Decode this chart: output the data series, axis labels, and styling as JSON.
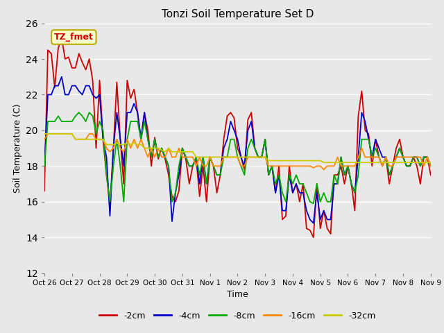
{
  "title": "Tonzi Soil Temperature Set D",
  "xlabel": "Time",
  "ylabel": "Soil Temperature (C)",
  "ylim": [
    12,
    26
  ],
  "xlim": [
    0,
    14
  ],
  "xtick_labels": [
    "Oct 26",
    "Oct 27",
    "Oct 28",
    "Oct 29",
    "Oct 30",
    "Oct 31",
    "Nov 1",
    "Nov 2",
    "Nov 3",
    "Nov 4",
    "Nov 5",
    "Nov 6",
    "Nov 7",
    "Nov 8",
    "Nov 9"
  ],
  "legend_labels": [
    "-2cm",
    "-4cm",
    "-8cm",
    "-16cm",
    "-32cm"
  ],
  "colors": [
    "#cc0000",
    "#0000cc",
    "#00aa00",
    "#ff8800",
    "#cccc00"
  ],
  "annotation_text": "TZ_fmet",
  "annotation_color": "#cc0000",
  "annotation_bg": "#ffffcc",
  "annotation_border": "#bbaa00",
  "background_color": "#e8e8e8",
  "series": {
    "neg2cm": [
      16.6,
      24.5,
      24.3,
      22.4,
      24.6,
      25.2,
      24.0,
      24.1,
      23.5,
      23.5,
      24.3,
      23.8,
      23.4,
      24.0,
      22.8,
      19.0,
      22.8,
      19.5,
      17.5,
      15.8,
      19.0,
      22.7,
      19.5,
      17.0,
      22.8,
      21.8,
      22.3,
      21.0,
      19.5,
      21.0,
      20.0,
      18.0,
      19.6,
      18.4,
      19.0,
      18.4,
      17.5,
      16.3,
      16.0,
      16.6,
      19.0,
      18.4,
      17.0,
      18.0,
      18.4,
      16.3,
      18.0,
      16.0,
      18.5,
      18.0,
      16.5,
      17.5,
      19.5,
      20.8,
      21.0,
      20.7,
      19.0,
      18.5,
      17.8,
      20.6,
      21.0,
      19.0,
      18.5,
      18.5,
      19.5,
      17.5,
      18.0,
      16.5,
      18.0,
      15.0,
      15.2,
      18.0,
      16.5,
      17.0,
      16.0,
      17.0,
      14.5,
      14.4,
      14.0,
      17.0,
      14.5,
      15.5,
      14.5,
      14.2,
      17.5,
      17.5,
      18.0,
      17.0,
      18.0,
      17.0,
      15.5,
      20.8,
      22.2,
      20.0,
      19.8,
      18.0,
      19.5,
      18.5,
      18.0,
      18.5,
      17.0,
      18.0,
      19.0,
      19.5,
      18.5,
      18.0,
      18.0,
      18.5,
      18.0,
      17.0,
      18.5,
      18.5,
      17.5
    ],
    "neg4cm": [
      18.0,
      22.0,
      22.0,
      22.5,
      22.5,
      23.0,
      22.0,
      22.0,
      22.5,
      22.5,
      22.2,
      22.0,
      22.5,
      22.5,
      22.0,
      21.8,
      22.0,
      19.5,
      18.5,
      15.2,
      19.0,
      21.0,
      19.5,
      18.0,
      21.0,
      21.0,
      21.5,
      21.0,
      19.5,
      21.0,
      19.5,
      18.5,
      19.5,
      18.5,
      19.0,
      18.5,
      18.0,
      14.9,
      16.5,
      17.5,
      19.0,
      18.5,
      18.0,
      18.0,
      18.5,
      17.0,
      18.5,
      17.0,
      18.5,
      18.0,
      17.5,
      17.5,
      19.0,
      19.5,
      20.5,
      20.0,
      19.5,
      18.5,
      18.0,
      20.0,
      20.5,
      19.0,
      18.5,
      18.5,
      19.5,
      17.5,
      18.0,
      16.5,
      17.5,
      15.5,
      15.5,
      17.5,
      16.5,
      17.0,
      16.5,
      16.5,
      15.5,
      15.0,
      14.8,
      16.5,
      15.0,
      15.5,
      15.0,
      15.0,
      17.0,
      17.0,
      18.5,
      17.5,
      18.0,
      17.0,
      16.5,
      18.5,
      21.0,
      20.5,
      19.5,
      18.5,
      19.5,
      19.0,
      18.5,
      18.5,
      17.5,
      18.0,
      18.5,
      19.0,
      18.5,
      18.0,
      18.0,
      18.5,
      18.5,
      18.0,
      18.5,
      18.5,
      18.0
    ],
    "neg8cm": [
      18.0,
      20.5,
      20.5,
      20.5,
      20.8,
      20.5,
      20.5,
      20.5,
      20.5,
      20.8,
      21.0,
      20.8,
      20.5,
      21.0,
      20.8,
      19.8,
      20.5,
      20.0,
      17.5,
      16.0,
      18.0,
      19.5,
      18.0,
      16.0,
      19.5,
      20.5,
      20.5,
      20.5,
      19.5,
      20.5,
      19.5,
      18.5,
      19.5,
      18.5,
      19.0,
      18.5,
      18.0,
      16.0,
      16.5,
      18.0,
      19.0,
      18.5,
      18.0,
      18.0,
      18.5,
      17.5,
      18.5,
      17.0,
      18.5,
      18.0,
      17.5,
      17.5,
      18.5,
      18.5,
      19.5,
      19.5,
      18.5,
      18.0,
      17.5,
      19.0,
      19.5,
      19.0,
      18.5,
      18.5,
      19.5,
      17.5,
      18.0,
      17.0,
      17.5,
      16.5,
      16.0,
      17.5,
      17.0,
      17.5,
      17.0,
      17.0,
      16.5,
      16.0,
      15.9,
      17.0,
      16.0,
      16.5,
      16.0,
      16.0,
      17.5,
      17.0,
      18.5,
      17.5,
      18.0,
      17.0,
      16.5,
      17.5,
      19.5,
      19.5,
      19.5,
      18.5,
      19.0,
      18.5,
      18.0,
      18.5,
      17.5,
      18.0,
      18.5,
      19.0,
      18.5,
      18.0,
      18.0,
      18.5,
      18.5,
      18.0,
      18.5,
      18.5,
      18.0
    ],
    "neg16cm": [
      19.5,
      19.8,
      19.8,
      19.8,
      19.8,
      19.8,
      19.8,
      19.8,
      19.8,
      19.5,
      19.5,
      19.5,
      19.5,
      19.8,
      19.8,
      19.5,
      19.5,
      19.5,
      19.0,
      18.8,
      19.0,
      19.5,
      19.0,
      18.8,
      19.5,
      19.0,
      19.5,
      19.0,
      19.5,
      19.0,
      18.5,
      19.0,
      18.5,
      19.0,
      18.5,
      18.5,
      19.0,
      18.5,
      18.5,
      19.0,
      18.5,
      18.5,
      18.5,
      18.5,
      18.0,
      18.5,
      18.0,
      18.0,
      18.5,
      18.0,
      18.0,
      18.0,
      18.5,
      18.5,
      18.5,
      18.5,
      18.5,
      18.0,
      18.0,
      18.5,
      18.5,
      18.5,
      18.5,
      18.5,
      18.5,
      18.0,
      18.0,
      18.0,
      18.0,
      18.0,
      18.0,
      18.0,
      18.0,
      18.0,
      18.0,
      18.0,
      18.0,
      18.0,
      17.9,
      18.0,
      18.0,
      17.8,
      18.0,
      18.0,
      18.0,
      18.5,
      18.0,
      18.0,
      18.0,
      18.0,
      18.0,
      18.5,
      19.0,
      18.5,
      18.5,
      18.5,
      18.5,
      18.5,
      18.0,
      18.5,
      18.0,
      18.0,
      18.5,
      18.5,
      18.5,
      18.5,
      18.5,
      18.5,
      18.5,
      18.5,
      18.0,
      18.5,
      18.0
    ],
    "neg32cm": [
      19.8,
      19.8,
      19.8,
      19.8,
      19.8,
      19.8,
      19.8,
      19.8,
      19.8,
      19.5,
      19.5,
      19.5,
      19.5,
      19.5,
      19.5,
      19.5,
      19.5,
      19.5,
      19.2,
      19.2,
      19.2,
      19.3,
      19.2,
      19.2,
      19.3,
      19.2,
      19.3,
      19.2,
      19.2,
      19.0,
      19.0,
      19.0,
      19.0,
      19.0,
      18.9,
      18.8,
      19.0,
      18.8,
      18.8,
      18.8,
      18.8,
      18.8,
      18.8,
      18.8,
      18.5,
      18.5,
      18.5,
      18.5,
      18.5,
      18.5,
      18.5,
      18.5,
      18.5,
      18.5,
      18.5,
      18.5,
      18.5,
      18.5,
      18.5,
      18.5,
      18.5,
      18.5,
      18.5,
      18.5,
      18.5,
      18.3,
      18.3,
      18.3,
      18.3,
      18.3,
      18.3,
      18.3,
      18.3,
      18.3,
      18.3,
      18.3,
      18.3,
      18.3,
      18.3,
      18.3,
      18.3,
      18.2,
      18.2,
      18.2,
      18.2,
      18.2,
      18.2,
      18.2,
      18.2,
      18.2,
      18.2,
      18.2,
      18.2,
      18.2,
      18.2,
      18.2,
      18.2,
      18.2,
      18.2,
      18.2,
      18.2,
      18.2,
      18.2,
      18.2,
      18.2,
      18.2,
      18.2,
      18.2,
      18.2,
      18.2,
      18.2,
      18.2,
      18.2
    ]
  }
}
